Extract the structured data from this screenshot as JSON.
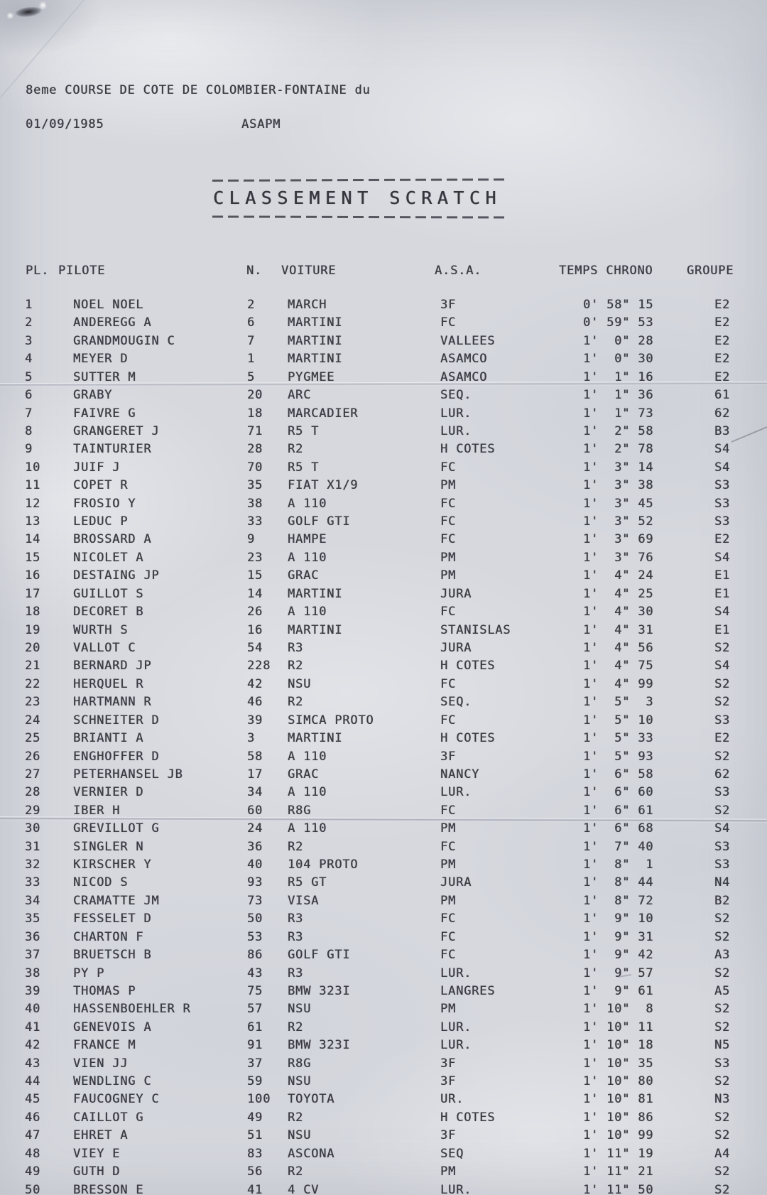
{
  "document": {
    "title": "8eme COURSE DE COTE DE COLOMBIER-FONTAINE du",
    "date": "01/09/1985",
    "organizer": "ASAPM",
    "section_title": "CLASSEMENT SCRATCH"
  },
  "table": {
    "headers": {
      "pl": "PL.",
      "pilote": "PILOTE",
      "n": "N.",
      "voiture": "VOITURE",
      "asa": "A.S.A.",
      "temps": "TEMPS CHRONO",
      "groupe": "GROUPE"
    },
    "rows": [
      {
        "pl": "1",
        "pilote": "NOEL NOEL",
        "n": "2",
        "voiture": "MARCH",
        "asa": "3F",
        "temps": "0' 58\" 15",
        "groupe": "E2"
      },
      {
        "pl": "2",
        "pilote": "ANDEREGG A",
        "n": "6",
        "voiture": "MARTINI",
        "asa": "FC",
        "temps": "0' 59\" 53",
        "groupe": "E2"
      },
      {
        "pl": "3",
        "pilote": "GRANDMOUGIN C",
        "n": "7",
        "voiture": "MARTINI",
        "asa": "VALLEES",
        "temps": "1'  0\" 28",
        "groupe": "E2"
      },
      {
        "pl": "4",
        "pilote": "MEYER D",
        "n": "1",
        "voiture": "MARTINI",
        "asa": "ASAMCO",
        "temps": "1'  0\" 30",
        "groupe": "E2"
      },
      {
        "pl": "5",
        "pilote": "SUTTER M",
        "n": "5",
        "voiture": "PYGMEE",
        "asa": "ASAMCO",
        "temps": "1'  1\" 16",
        "groupe": "E2"
      },
      {
        "pl": "6",
        "pilote": "GRABY",
        "n": "20",
        "voiture": "ARC",
        "asa": "SEQ.",
        "temps": "1'  1\" 36",
        "groupe": "61"
      },
      {
        "pl": "7",
        "pilote": "FAIVRE G",
        "n": "18",
        "voiture": "MARCADIER",
        "asa": "LUR.",
        "temps": "1'  1\" 73",
        "groupe": "62"
      },
      {
        "pl": "8",
        "pilote": "GRANGERET J",
        "n": "71",
        "voiture": "R5 T",
        "asa": "LUR.",
        "temps": "1'  2\" 58",
        "groupe": "B3"
      },
      {
        "pl": "9",
        "pilote": "TAINTURIER",
        "n": "28",
        "voiture": "R2",
        "asa": "H COTES",
        "temps": "1'  2\" 78",
        "groupe": "S4"
      },
      {
        "pl": "10",
        "pilote": "JUIF J",
        "n": "70",
        "voiture": "R5 T",
        "asa": "FC",
        "temps": "1'  3\" 14",
        "groupe": "S4"
      },
      {
        "pl": "11",
        "pilote": "COPET R",
        "n": "35",
        "voiture": "FIAT X1/9",
        "asa": "PM",
        "temps": "1'  3\" 38",
        "groupe": "S3"
      },
      {
        "pl": "12",
        "pilote": "FROSIO Y",
        "n": "38",
        "voiture": "A 110",
        "asa": "FC",
        "temps": "1'  3\" 45",
        "groupe": "S3"
      },
      {
        "pl": "13",
        "pilote": "LEDUC P",
        "n": "33",
        "voiture": "GOLF GTI",
        "asa": "FC",
        "temps": "1'  3\" 52",
        "groupe": "S3"
      },
      {
        "pl": "14",
        "pilote": "BROSSARD A",
        "n": "9",
        "voiture": "HAMPE",
        "asa": "FC",
        "temps": "1'  3\" 69",
        "groupe": "E2"
      },
      {
        "pl": "15",
        "pilote": "NICOLET A",
        "n": "23",
        "voiture": "A 110",
        "asa": "PM",
        "temps": "1'  3\" 76",
        "groupe": "S4"
      },
      {
        "pl": "16",
        "pilote": "DESTAING JP",
        "n": "15",
        "voiture": "GRAC",
        "asa": "PM",
        "temps": "1'  4\" 24",
        "groupe": "E1"
      },
      {
        "pl": "17",
        "pilote": "GUILLOT S",
        "n": "14",
        "voiture": "MARTINI",
        "asa": "JURA",
        "temps": "1'  4\" 25",
        "groupe": "E1"
      },
      {
        "pl": "18",
        "pilote": "DECORET B",
        "n": "26",
        "voiture": "A 110",
        "asa": "FC",
        "temps": "1'  4\" 30",
        "groupe": "S4"
      },
      {
        "pl": "19",
        "pilote": "WURTH S",
        "n": "16",
        "voiture": "MARTINI",
        "asa": "STANISLAS",
        "temps": "1'  4\" 31",
        "groupe": "E1"
      },
      {
        "pl": "20",
        "pilote": "VALLOT C",
        "n": "54",
        "voiture": "R3",
        "asa": "JURA",
        "temps": "1'  4\" 56",
        "groupe": "S2"
      },
      {
        "pl": "21",
        "pilote": "BERNARD JP",
        "n": "228",
        "voiture": "R2",
        "asa": "H COTES",
        "temps": "1'  4\" 75",
        "groupe": "S4"
      },
      {
        "pl": "22",
        "pilote": "HERQUEL R",
        "n": "42",
        "voiture": "NSU",
        "asa": "FC",
        "temps": "1'  4\" 99",
        "groupe": "S2"
      },
      {
        "pl": "23",
        "pilote": "HARTMANN R",
        "n": "46",
        "voiture": "R2",
        "asa": "SEQ.",
        "temps": "1'  5\"  3",
        "groupe": "S2"
      },
      {
        "pl": "24",
        "pilote": "SCHNEITER D",
        "n": "39",
        "voiture": "SIMCA PROTO",
        "asa": "FC",
        "temps": "1'  5\" 10",
        "groupe": "S3"
      },
      {
        "pl": "25",
        "pilote": "BRIANTI A",
        "n": "3",
        "voiture": "MARTINI",
        "asa": "H COTES",
        "temps": "1'  5\" 33",
        "groupe": "E2"
      },
      {
        "pl": "26",
        "pilote": "ENGHOFFER D",
        "n": "58",
        "voiture": "A 110",
        "asa": "3F",
        "temps": "1'  5\" 93",
        "groupe": "S2"
      },
      {
        "pl": "27",
        "pilote": "PETERHANSEL JB",
        "n": "17",
        "voiture": "GRAC",
        "asa": "NANCY",
        "temps": "1'  6\" 58",
        "groupe": "62"
      },
      {
        "pl": "28",
        "pilote": "VERNIER D",
        "n": "34",
        "voiture": "A 110",
        "asa": "LUR.",
        "temps": "1'  6\" 60",
        "groupe": "S3"
      },
      {
        "pl": "29",
        "pilote": "IBER H",
        "n": "60",
        "voiture": "R8G",
        "asa": "FC",
        "temps": "1'  6\" 61",
        "groupe": "S2"
      },
      {
        "pl": "30",
        "pilote": "GREVILLOT G",
        "n": "24",
        "voiture": "A 110",
        "asa": "PM",
        "temps": "1'  6\" 68",
        "groupe": "S4"
      },
      {
        "pl": "31",
        "pilote": "SINGLER N",
        "n": "36",
        "voiture": "R2",
        "asa": "FC",
        "temps": "1'  7\" 40",
        "groupe": "S3"
      },
      {
        "pl": "32",
        "pilote": "KIRSCHER Y",
        "n": "40",
        "voiture": "104 PROTO",
        "asa": "PM",
        "temps": "1'  8\"  1",
        "groupe": "S3"
      },
      {
        "pl": "33",
        "pilote": "NICOD S",
        "n": "93",
        "voiture": "R5 GT",
        "asa": "JURA",
        "temps": "1'  8\" 44",
        "groupe": "N4"
      },
      {
        "pl": "34",
        "pilote": "CRAMATTE JM",
        "n": "73",
        "voiture": "VISA",
        "asa": "PM",
        "temps": "1'  8\" 72",
        "groupe": "B2"
      },
      {
        "pl": "35",
        "pilote": "FESSELET D",
        "n": "50",
        "voiture": "R3",
        "asa": "FC",
        "temps": "1'  9\" 10",
        "groupe": "S2"
      },
      {
        "pl": "36",
        "pilote": "CHARTON F",
        "n": "53",
        "voiture": "R3",
        "asa": "FC",
        "temps": "1'  9\" 31",
        "groupe": "S2"
      },
      {
        "pl": "37",
        "pilote": "BRUETSCH B",
        "n": "86",
        "voiture": "GOLF GTI",
        "asa": "FC",
        "temps": "1'  9\" 42",
        "groupe": "A3"
      },
      {
        "pl": "38",
        "pilote": "PY P",
        "n": "43",
        "voiture": "R3",
        "asa": "LUR.",
        "temps": "1'  9\" 57",
        "groupe": "S2"
      },
      {
        "pl": "39",
        "pilote": "THOMAS P",
        "n": "75",
        "voiture": "BMW 323I",
        "asa": "LANGRES",
        "temps": "1'  9\" 61",
        "groupe": "A5"
      },
      {
        "pl": "40",
        "pilote": "HASSENBOEHLER R",
        "n": "57",
        "voiture": "NSU",
        "asa": "PM",
        "temps": "1' 10\"  8",
        "groupe": "S2"
      },
      {
        "pl": "41",
        "pilote": "GENEVOIS A",
        "n": "61",
        "voiture": "R2",
        "asa": "LUR.",
        "temps": "1' 10\" 11",
        "groupe": "S2"
      },
      {
        "pl": "42",
        "pilote": "FRANCE M",
        "n": "91",
        "voiture": "BMW 323I",
        "asa": "LUR.",
        "temps": "1' 10\" 18",
        "groupe": "N5"
      },
      {
        "pl": "43",
        "pilote": "VIEN JJ",
        "n": "37",
        "voiture": "R8G",
        "asa": "3F",
        "temps": "1' 10\" 35",
        "groupe": "S3"
      },
      {
        "pl": "44",
        "pilote": "WENDLING C",
        "n": "59",
        "voiture": "NSU",
        "asa": "3F",
        "temps": "1' 10\" 80",
        "groupe": "S2"
      },
      {
        "pl": "45",
        "pilote": "FAUCOGNEY C",
        "n": "100",
        "voiture": "TOYOTA",
        "asa": "UR.",
        "temps": "1' 10\" 81",
        "groupe": "N3"
      },
      {
        "pl": "46",
        "pilote": "CAILLOT G",
        "n": "49",
        "voiture": "R2",
        "asa": "H COTES",
        "temps": "1' 10\" 86",
        "groupe": "S2"
      },
      {
        "pl": "47",
        "pilote": "EHRET A",
        "n": "51",
        "voiture": "NSU",
        "asa": "3F",
        "temps": "1' 10\" 99",
        "groupe": "S2"
      },
      {
        "pl": "48",
        "pilote": "VIEY E",
        "n": "83",
        "voiture": "ASCONA",
        "asa": "SEQ",
        "temps": "1' 11\" 19",
        "groupe": "A4"
      },
      {
        "pl": "49",
        "pilote": "GUTH D",
        "n": "56",
        "voiture": "R2",
        "asa": "PM",
        "temps": "1' 11\" 21",
        "groupe": "S2"
      },
      {
        "pl": "50",
        "pilote": "BRESSON E",
        "n": "41",
        "voiture": "4 CV",
        "asa": "LUR.",
        "temps": "1' 11\" 50",
        "groupe": "S2"
      }
    ]
  }
}
